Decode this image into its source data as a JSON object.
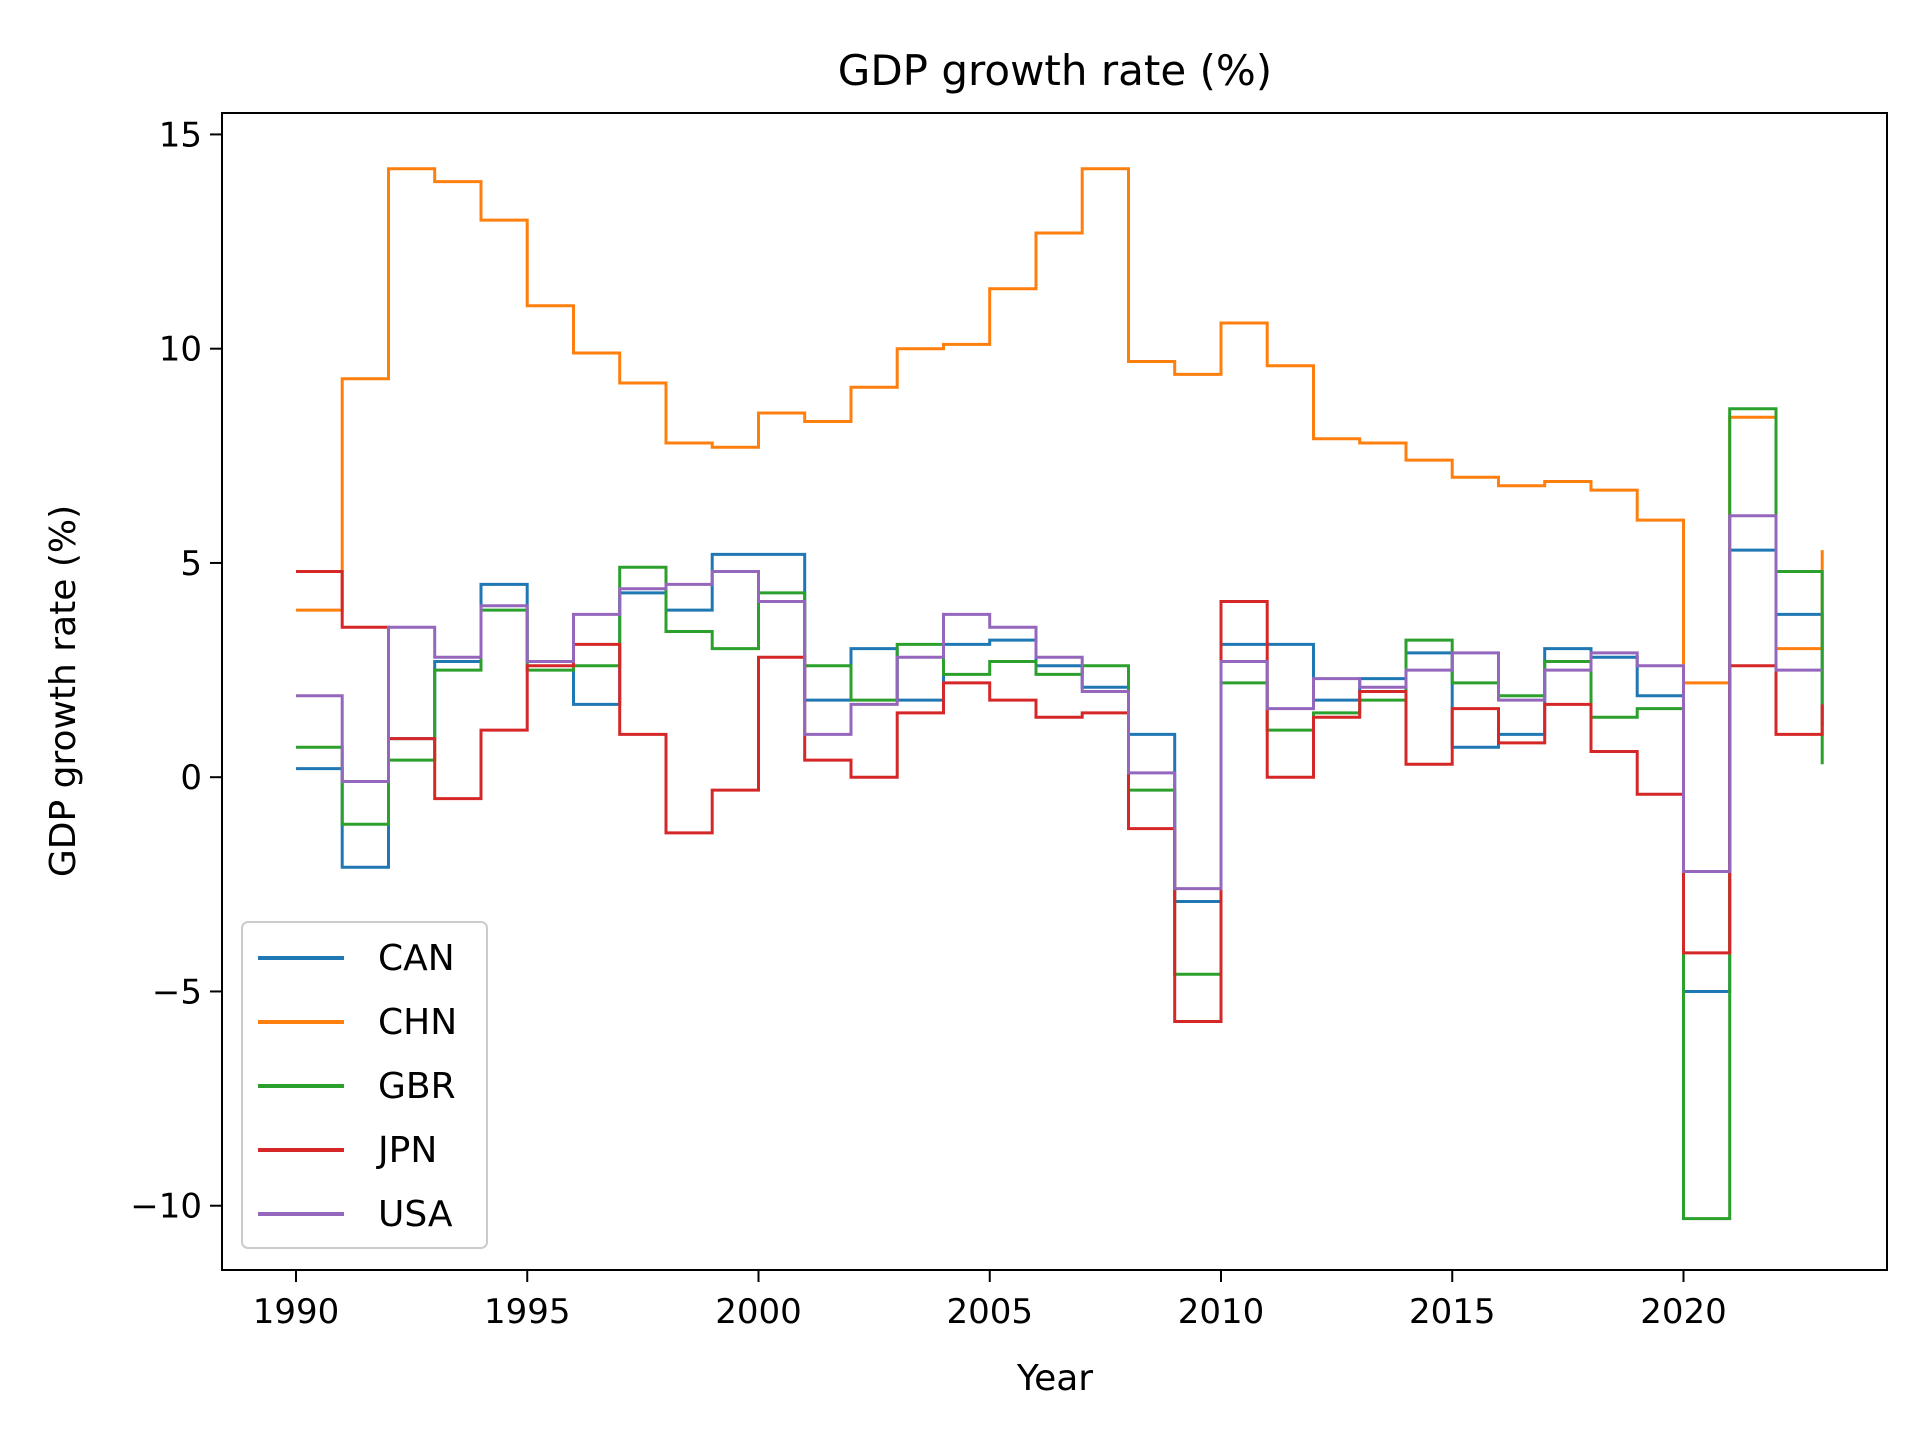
{
  "chart_data": {
    "type": "line",
    "step": "post",
    "title": "GDP growth rate (%)",
    "xlabel": "Year",
    "ylabel": "GDP growth rate (%)",
    "xlim": [
      1988.4,
      2024.4
    ],
    "ylim": [
      -11.5,
      15.5
    ],
    "x_ticks": [
      1990,
      1995,
      2000,
      2005,
      2010,
      2015,
      2020
    ],
    "x_tick_labels": [
      "1990",
      "1995",
      "2000",
      "2005",
      "2010",
      "2015",
      "2020"
    ],
    "y_ticks": [
      15,
      10,
      5,
      0,
      -5,
      -10
    ],
    "y_tick_labels": [
      "15",
      "10",
      "5",
      "0",
      "−5",
      "−10"
    ],
    "grid": false,
    "legend_position": "lower-left",
    "x": [
      1990,
      1991,
      1992,
      1993,
      1994,
      1995,
      1996,
      1997,
      1998,
      1999,
      2000,
      2001,
      2002,
      2003,
      2004,
      2005,
      2006,
      2007,
      2008,
      2009,
      2010,
      2011,
      2012,
      2013,
      2014,
      2015,
      2016,
      2017,
      2018,
      2019,
      2020,
      2021,
      2022,
      2023
    ],
    "series": [
      {
        "name": "CAN",
        "color": "#1f77b4",
        "values": [
          0.2,
          -2.1,
          0.9,
          2.7,
          4.5,
          2.7,
          1.7,
          4.3,
          3.9,
          5.2,
          5.2,
          1.8,
          3.0,
          1.8,
          3.1,
          3.2,
          2.6,
          2.1,
          1.0,
          -2.9,
          3.1,
          3.1,
          1.8,
          2.3,
          2.9,
          0.7,
          1.0,
          3.0,
          2.8,
          1.9,
          -5.0,
          5.3,
          3.8,
          1.2
        ]
      },
      {
        "name": "CHN",
        "color": "#ff7f0e",
        "values": [
          3.9,
          9.3,
          14.2,
          13.9,
          13.0,
          11.0,
          9.9,
          9.2,
          7.8,
          7.7,
          8.5,
          8.3,
          9.1,
          10.0,
          10.1,
          11.4,
          12.7,
          14.2,
          9.7,
          9.4,
          10.6,
          9.6,
          7.9,
          7.8,
          7.4,
          7.0,
          6.8,
          6.9,
          6.7,
          6.0,
          2.2,
          8.4,
          3.0,
          5.3
        ]
      },
      {
        "name": "GBR",
        "color": "#2ca02c",
        "values": [
          0.7,
          -1.1,
          0.4,
          2.5,
          3.9,
          2.5,
          2.6,
          4.9,
          3.4,
          3.0,
          4.3,
          2.6,
          1.8,
          3.1,
          2.4,
          2.7,
          2.4,
          2.6,
          -0.3,
          -4.6,
          2.2,
          1.1,
          1.5,
          1.8,
          3.2,
          2.2,
          1.9,
          2.7,
          1.4,
          1.6,
          -10.3,
          8.6,
          4.8,
          0.3
        ]
      },
      {
        "name": "JPN",
        "color": "#d62728",
        "values": [
          4.8,
          3.5,
          0.9,
          -0.5,
          1.1,
          2.6,
          3.1,
          1.0,
          -1.3,
          -0.3,
          2.8,
          0.4,
          0.0,
          1.5,
          2.2,
          1.8,
          1.4,
          1.5,
          -1.2,
          -5.7,
          4.1,
          0.0,
          1.4,
          2.0,
          0.3,
          1.6,
          0.8,
          1.7,
          0.6,
          -0.4,
          -4.1,
          2.6,
          1.0,
          1.7
        ]
      },
      {
        "name": "USA",
        "color": "#9467bd",
        "values": [
          1.9,
          -0.1,
          3.5,
          2.8,
          4.0,
          2.7,
          3.8,
          4.4,
          4.5,
          4.8,
          4.1,
          1.0,
          1.7,
          2.8,
          3.8,
          3.5,
          2.8,
          2.0,
          0.1,
          -2.6,
          2.7,
          1.6,
          2.3,
          2.1,
          2.5,
          2.9,
          1.8,
          2.5,
          2.9,
          2.6,
          -2.2,
          6.1,
          2.5,
          2.5
        ]
      }
    ]
  }
}
